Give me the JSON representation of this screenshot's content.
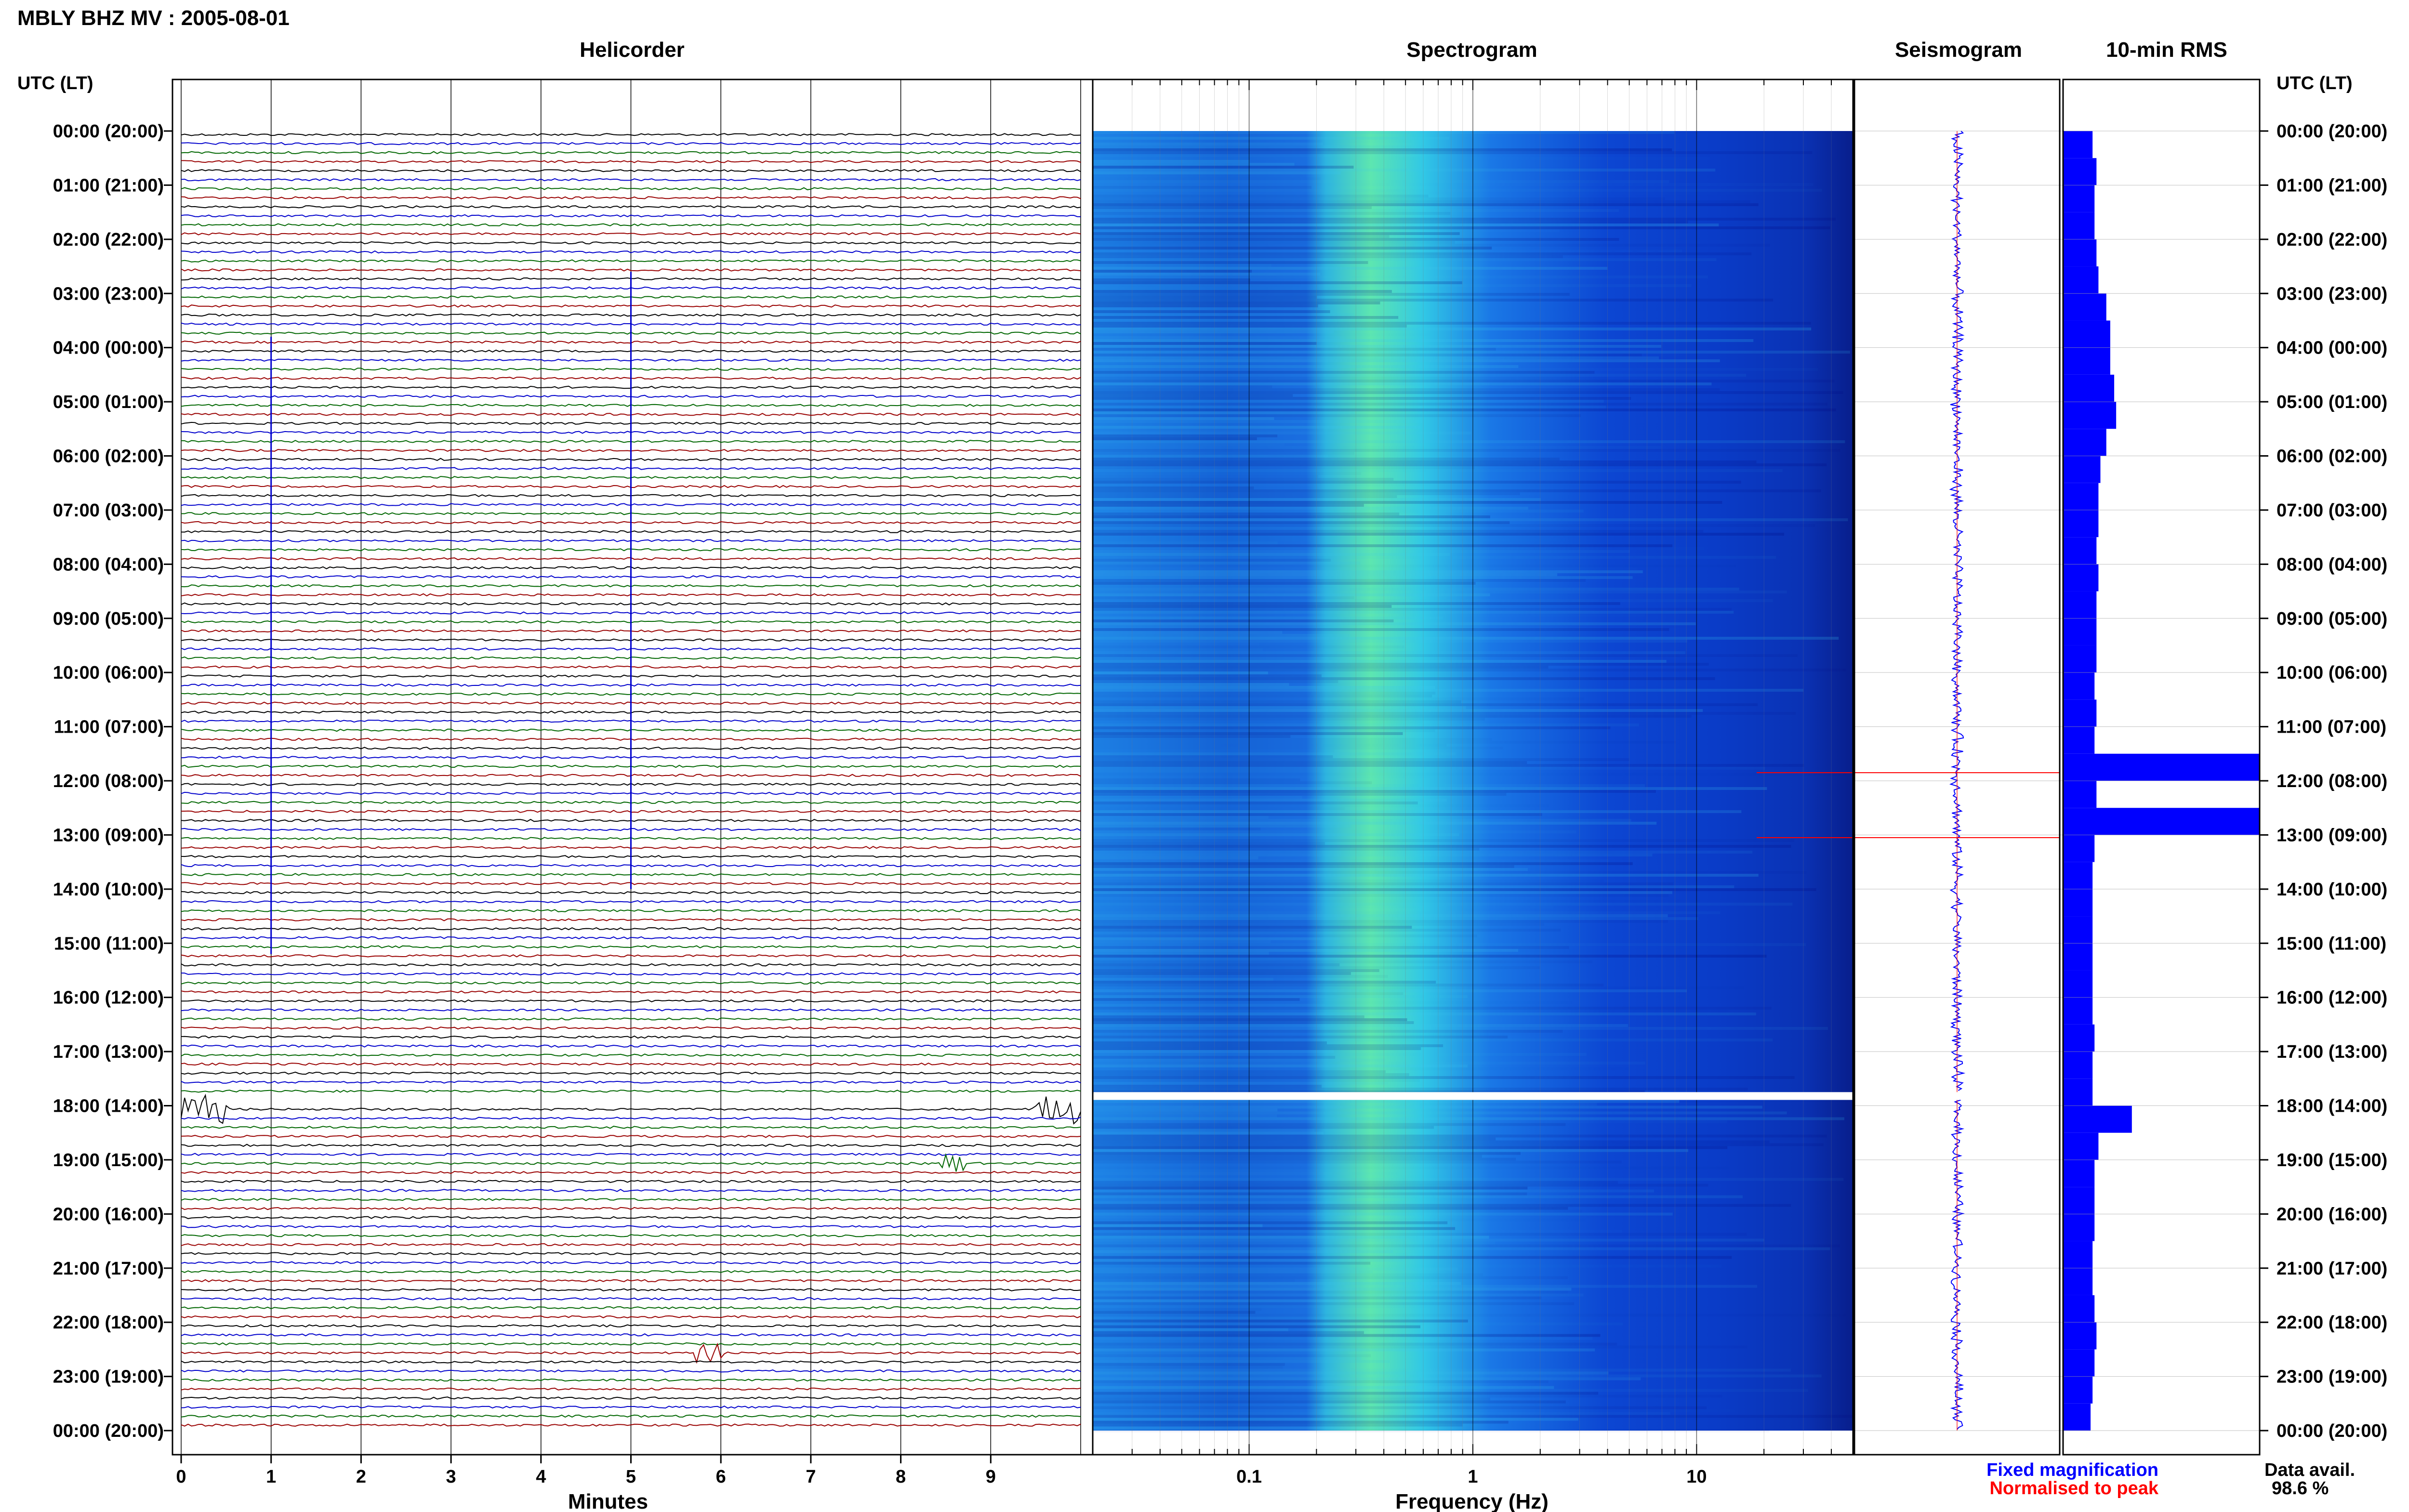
{
  "title": "MBLY BHZ MV : 2005-08-01",
  "panels": {
    "helicorder": "Helicorder",
    "spectrogram": "Spectrogram",
    "seismogram": "Seismogram",
    "rms": "10-min RMS"
  },
  "axis_header_left": "UTC (LT)",
  "axis_header_right": "UTC (LT)",
  "time_labels": [
    "00:00 (20:00)",
    "01:00 (21:00)",
    "02:00 (22:00)",
    "03:00 (23:00)",
    "04:00 (00:00)",
    "05:00 (01:00)",
    "06:00 (02:00)",
    "07:00 (03:00)",
    "08:00 (04:00)",
    "09:00 (05:00)",
    "10:00 (06:00)",
    "11:00 (07:00)",
    "12:00 (08:00)",
    "13:00 (09:00)",
    "14:00 (10:00)",
    "15:00 (11:00)",
    "16:00 (12:00)",
    "17:00 (13:00)",
    "18:00 (14:00)",
    "19:00 (15:00)",
    "20:00 (16:00)",
    "21:00 (17:00)",
    "22:00 (18:00)",
    "23:00 (19:00)",
    "00:00 (20:00)"
  ],
  "legend": {
    "fixed": "Fixed magnification",
    "normalised": "Normalised to peak",
    "fixed_color": "#0000ff",
    "normalised_color": "#ff0000"
  },
  "data_avail": {
    "label": "Data avail.",
    "value": "98.6 %"
  },
  "colors": {
    "trace_cycle": [
      "#000000",
      "#0000cc",
      "#006600",
      "#990000"
    ],
    "rms_bar": "#0000ff",
    "spec_low": "#00008b",
    "spec_mid": "#0a5adc",
    "spec_high": "#2de6c8"
  },
  "chart_data": [
    {
      "type": "line",
      "title": "Helicorder",
      "xlabel": "Minutes",
      "xlim": [
        0,
        10
      ],
      "x_ticks": [
        "0",
        "1",
        "2",
        "3",
        "4",
        "5",
        "6",
        "7",
        "8",
        "9"
      ],
      "rows_per_hour": 6,
      "data_gap_hours": [
        17.75,
        18.0
      ],
      "events": [
        {
          "hour": 17.95,
          "minute_start": 9.5,
          "minute_end": 10.0,
          "amplitude": 3
        },
        {
          "hour": 18.05,
          "minute_start": 0.0,
          "minute_end": 0.5,
          "amplitude": 3
        },
        {
          "hour": 18.95,
          "minute_start": 8.4,
          "minute_end": 8.7,
          "amplitude": 2
        },
        {
          "hour": 22.45,
          "minute_start": 5.7,
          "minute_end": 6.0,
          "amplitude": 2
        }
      ]
    },
    {
      "type": "heatmap",
      "title": "Spectrogram",
      "xlabel": "Frequency (Hz)",
      "x_scale": "log",
      "xlim": [
        0.02,
        50
      ],
      "x_ticks": [
        "0.1",
        "1",
        "10"
      ],
      "peak_band_hz": [
        0.2,
        0.6
      ],
      "data_gap_hours": [
        17.75,
        18.0
      ]
    },
    {
      "type": "line",
      "title": "Seismogram",
      "series": [
        {
          "name": "Fixed magnification",
          "color": "#0000ff"
        },
        {
          "name": "Normalised to peak",
          "color": "#ff0000"
        }
      ],
      "normalised_spikes_hours": [
        11.85,
        13.05
      ]
    },
    {
      "type": "bar",
      "title": "10-min RMS",
      "orientation": "horizontal",
      "x_hours": [
        0,
        0.5,
        1,
        1.5,
        2,
        2.5,
        3,
        3.5,
        4,
        4.5,
        5,
        5.5,
        6,
        6.5,
        7,
        7.5,
        8,
        8.5,
        9,
        9.5,
        10,
        10.5,
        11,
        11.5,
        12,
        12.5,
        13,
        13.5,
        14,
        14.5,
        15,
        15.5,
        16,
        16.5,
        17,
        17.5,
        18,
        18.5,
        19,
        19.5,
        20,
        20.5,
        21,
        21.5,
        22,
        22.5,
        23,
        23.5
      ],
      "values": [
        0.15,
        0.17,
        0.16,
        0.16,
        0.17,
        0.18,
        0.22,
        0.24,
        0.24,
        0.26,
        0.27,
        0.22,
        0.19,
        0.18,
        0.18,
        0.17,
        0.18,
        0.17,
        0.17,
        0.17,
        0.16,
        0.17,
        0.16,
        1.0,
        0.17,
        1.0,
        0.16,
        0.15,
        0.15,
        0.15,
        0.15,
        0.15,
        0.15,
        0.16,
        0.15,
        0.15,
        0.35,
        0.18,
        0.16,
        0.16,
        0.16,
        0.15,
        0.15,
        0.16,
        0.17,
        0.16,
        0.15,
        0.14
      ],
      "data_gap_hours": [
        17.75,
        18.0
      ]
    }
  ]
}
